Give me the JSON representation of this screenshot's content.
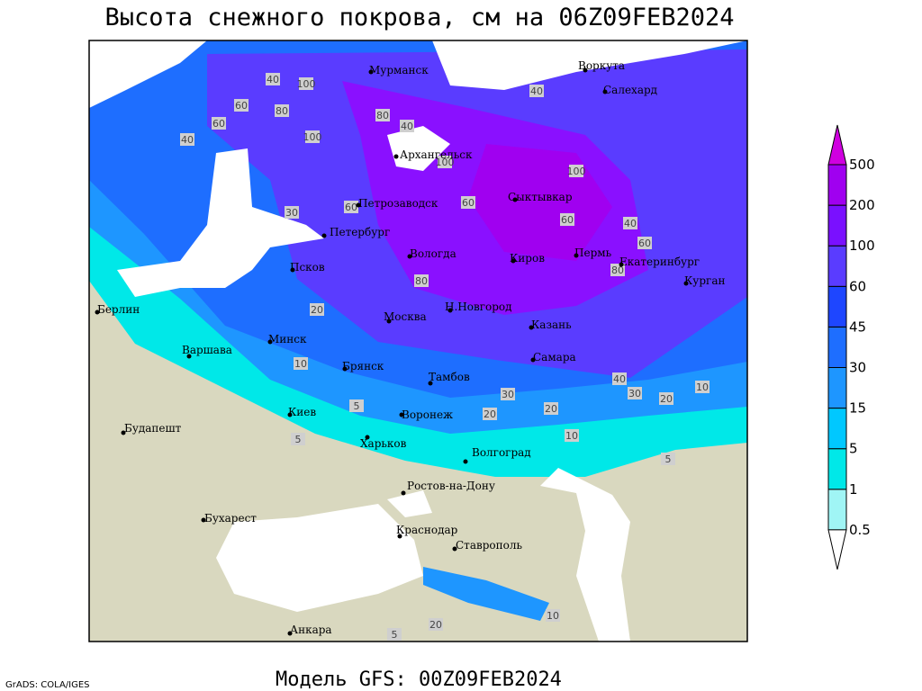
{
  "title": "Высота снежного покрова, см на 06Z09FEB2024",
  "footer": "Модель GFS: 00Z09FEB2024",
  "credit": "GrADS: COLA/IGES",
  "cities": [
    "Мурманск",
    "Воркута",
    "Салехард",
    "Архангельск",
    "Петрозаводск",
    "Сыктывкар",
    "Петербург",
    "Вологда",
    "Киров",
    "Пермь",
    "Екатеринбург",
    "Курган",
    "Псков",
    "Берлин",
    "Москва",
    "Н.Новгород",
    "Казань",
    "Минск",
    "Варшава",
    "Брянск",
    "Самара",
    "Тамбов",
    "Киев",
    "Воронеж",
    "Будапешт",
    "Харьков",
    "Волгоград",
    "Ростов-на-Дону",
    "Бухарест",
    "Краснодар",
    "Ставрополь",
    "Анкара"
  ],
  "contour_labels": [
    40,
    100,
    60,
    80,
    40,
    60,
    100,
    80,
    40,
    100,
    60,
    40,
    30,
    60,
    80,
    60,
    40,
    100,
    60,
    80,
    30,
    20,
    20,
    10,
    10,
    5,
    5,
    20,
    40,
    20,
    10,
    5,
    20,
    10,
    5,
    30
  ],
  "legend": {
    "levels": [
      0.5,
      1,
      5,
      15,
      30,
      45,
      60,
      100,
      200,
      500
    ],
    "colors": [
      "#ffffff",
      "#a0f5f5",
      "#00e8e8",
      "#00c8ff",
      "#1e96ff",
      "#1e6eff",
      "#1e46ff",
      "#5a3cff",
      "#7a10ff",
      "#a000f0",
      "#d000e0"
    ]
  }
}
